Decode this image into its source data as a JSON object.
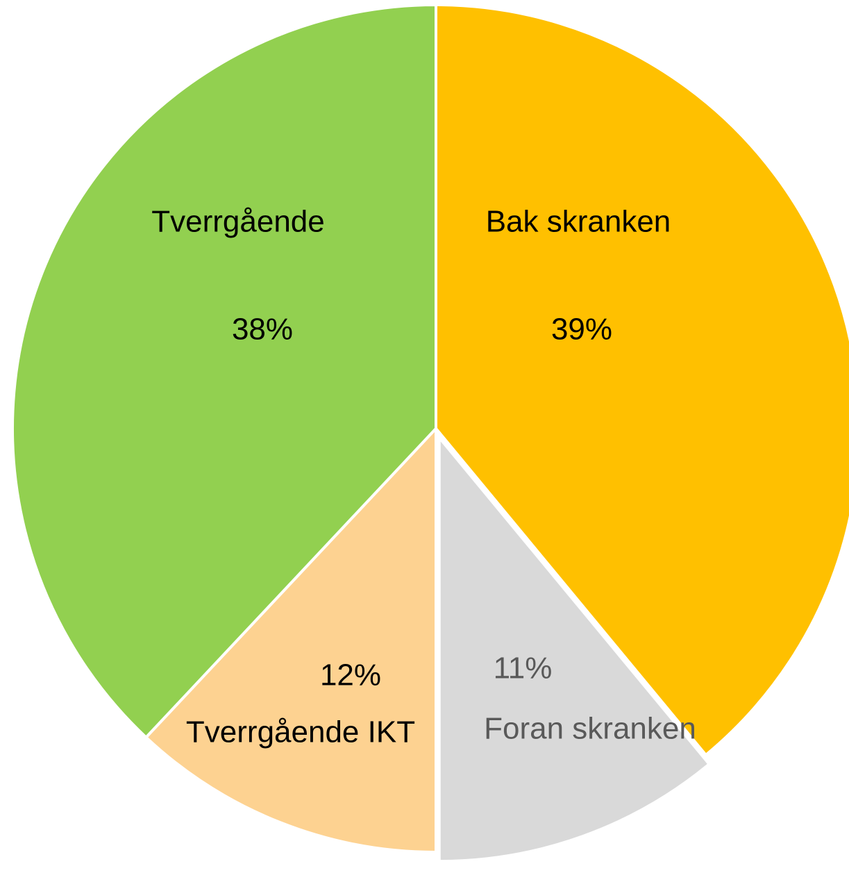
{
  "chart_data": {
    "type": "pie",
    "categories": [
      "Bak skranken",
      "Foran skranken",
      "Tverrgående IKT",
      "Tverrgående"
    ],
    "values": [
      39,
      11,
      12,
      38
    ],
    "value_labels": [
      "39%",
      "11%",
      "12%",
      "38%"
    ],
    "colors": [
      "#FFC000",
      "#D9D9D9",
      "#FDD291",
      "#92D050"
    ],
    "exploded": [
      false,
      true,
      false,
      false
    ]
  }
}
